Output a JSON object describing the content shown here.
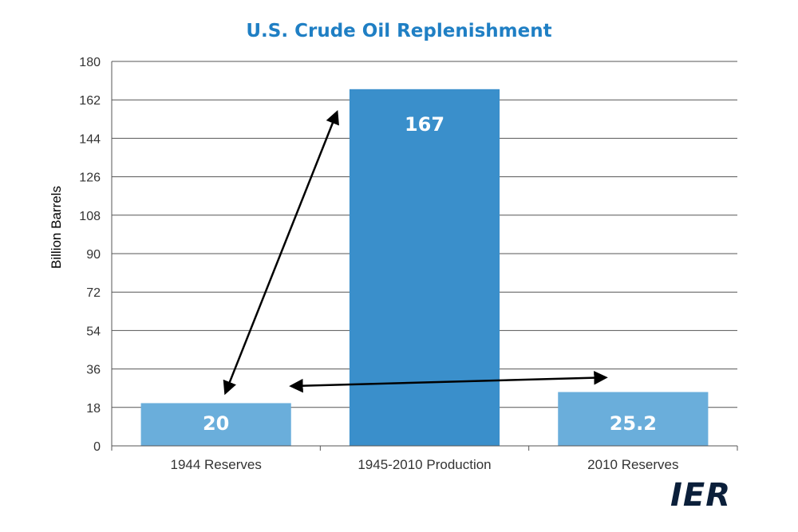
{
  "chart_data": {
    "type": "bar",
    "title": "U.S. Crude Oil Replenishment",
    "ylabel": "Billion Barrels",
    "xlabel": "",
    "categories": [
      "1944 Reserves",
      "1945-2010 Production",
      "2010 Reserves"
    ],
    "values": [
      20,
      167,
      25.2
    ],
    "data_labels": [
      "20",
      "167",
      "25.2"
    ],
    "ylim": [
      0,
      180
    ],
    "yticks": [
      0,
      18,
      36,
      54,
      72,
      90,
      108,
      126,
      144,
      162,
      180
    ],
    "grid": true,
    "bar_colors": [
      "#6aaedb",
      "#3a8fcb",
      "#6aaedb"
    ],
    "annotations": [
      {
        "type": "double-arrow",
        "from": {
          "category": "1944 Reserves",
          "y": 25
        },
        "to": {
          "category": "1945-2010 Production",
          "y": 156
        }
      },
      {
        "type": "double-arrow",
        "from": {
          "category": "1944 Reserves",
          "y": 28
        },
        "to": {
          "category": "2010 Reserves",
          "y": 32
        }
      }
    ]
  },
  "branding": {
    "logo_text": "IER",
    "logo_color": "#0b1f3a"
  },
  "colors": {
    "title": "#1f7fc4",
    "grid": "#555555"
  }
}
